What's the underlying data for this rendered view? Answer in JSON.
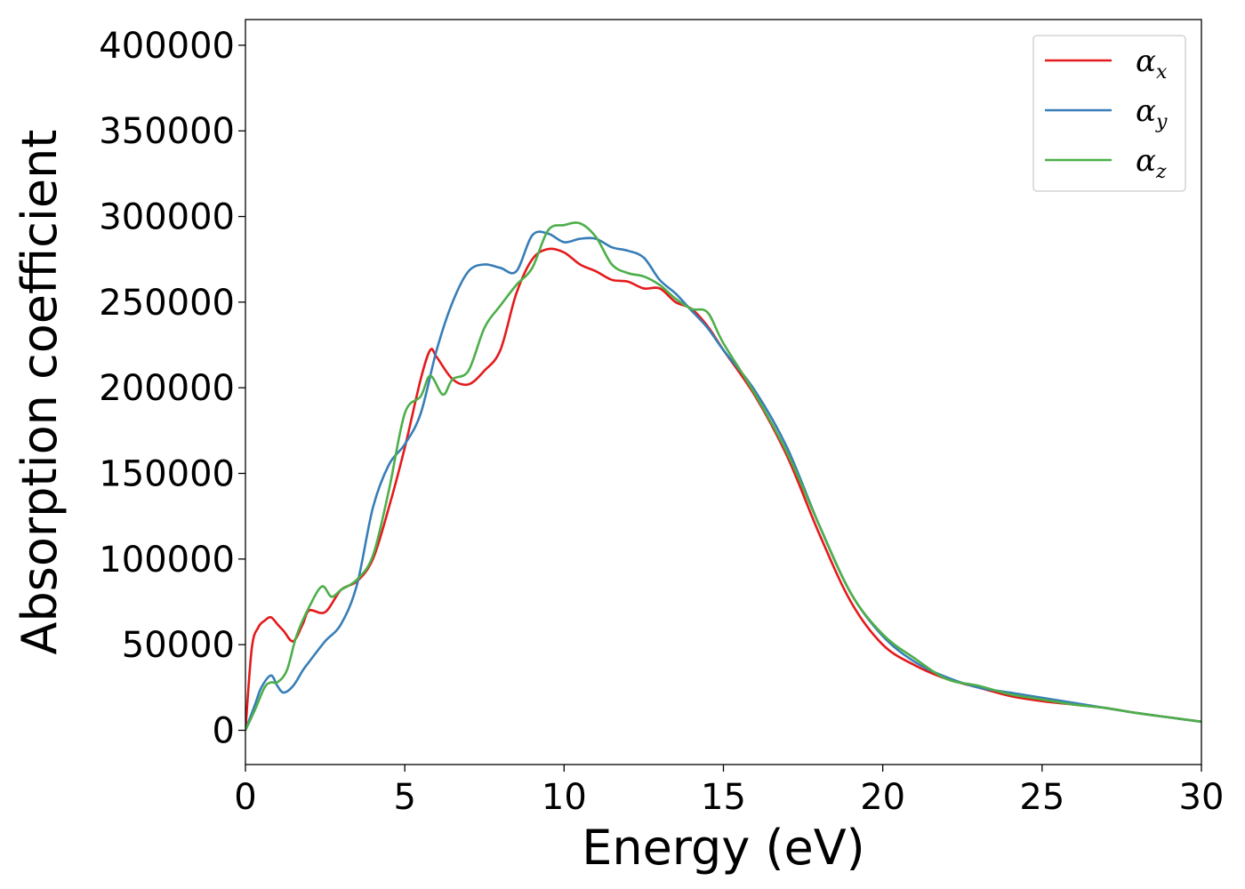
{
  "chart_data": {
    "type": "line",
    "title": "",
    "xlabel": "Energy (eV)",
    "ylabel": "Absorption coefficient",
    "xlim": [
      0,
      30
    ],
    "ylim": [
      -20000,
      415000
    ],
    "grid": false,
    "legend_position": "top-right",
    "x_ticks": [
      0,
      5,
      10,
      15,
      20,
      25,
      30
    ],
    "x_tick_labels": [
      "0",
      "5",
      "10",
      "15",
      "20",
      "25",
      "30"
    ],
    "y_ticks": [
      0,
      50000,
      100000,
      150000,
      200000,
      250000,
      300000,
      350000,
      400000
    ],
    "y_tick_labels": [
      "0",
      "50000",
      "100000",
      "150000",
      "200000",
      "250000",
      "300000",
      "350000",
      "400000"
    ],
    "series": [
      {
        "name": "α_x",
        "legend_symbol": "α",
        "legend_subscript": "x",
        "color": "#e41a1c",
        "x": [
          0,
          0.2,
          0.4,
          0.6,
          0.8,
          1.0,
          1.2,
          1.5,
          1.8,
          2.0,
          2.5,
          3.0,
          3.5,
          4.0,
          4.5,
          5.0,
          5.5,
          5.8,
          6.0,
          6.5,
          7.0,
          7.5,
          8.0,
          8.5,
          9.0,
          9.5,
          10.0,
          10.5,
          11.0,
          11.5,
          12.0,
          12.5,
          13.0,
          13.5,
          14.0,
          14.5,
          15.0,
          16.0,
          17.0,
          18.0,
          19.0,
          20.0,
          21.0,
          22.0,
          23.0,
          24.0,
          25.0,
          26.0,
          27.0,
          28.0,
          29.0,
          30.0
        ],
        "y": [
          0,
          48000,
          60000,
          64000,
          66000,
          62000,
          58000,
          52000,
          62000,
          70000,
          69000,
          82000,
          87000,
          100000,
          130000,
          165000,
          205000,
          222000,
          218000,
          205000,
          202000,
          210000,
          222000,
          255000,
          275000,
          281000,
          279000,
          272000,
          268000,
          263000,
          262000,
          258000,
          258000,
          250000,
          246000,
          236000,
          222000,
          195000,
          160000,
          115000,
          75000,
          50000,
          38000,
          30000,
          25000,
          20000,
          17000,
          15000,
          13000,
          10000,
          7500,
          5000
        ]
      },
      {
        "name": "α_y",
        "legend_symbol": "α",
        "legend_subscript": "y",
        "color": "#377eb8",
        "x": [
          0,
          0.3,
          0.5,
          0.8,
          1.0,
          1.2,
          1.5,
          1.8,
          2.0,
          2.5,
          3.0,
          3.5,
          4.0,
          4.5,
          5.0,
          5.5,
          6.0,
          6.5,
          7.0,
          7.5,
          8.0,
          8.5,
          9.0,
          9.5,
          10.0,
          10.5,
          11.0,
          11.5,
          12.0,
          12.5,
          13.0,
          13.5,
          14.0,
          14.5,
          15.0,
          16.0,
          17.0,
          18.0,
          19.0,
          20.0,
          21.0,
          22.0,
          23.0,
          24.0,
          25.0,
          26.0,
          27.0,
          28.0,
          29.0,
          30.0
        ],
        "y": [
          0,
          15000,
          25000,
          32000,
          26000,
          22000,
          26000,
          35000,
          40000,
          52000,
          62000,
          85000,
          130000,
          155000,
          167000,
          185000,
          222000,
          250000,
          268000,
          272000,
          270000,
          268000,
          289000,
          290000,
          285000,
          287000,
          287000,
          282000,
          280000,
          276000,
          263000,
          255000,
          245000,
          235000,
          222000,
          198000,
          165000,
          120000,
          80000,
          55000,
          40000,
          31000,
          25000,
          22000,
          19000,
          16000,
          13000,
          10000,
          7500,
          5000
        ]
      },
      {
        "name": "α_z",
        "legend_symbol": "α",
        "legend_subscript": "z",
        "color": "#4daf4a",
        "x": [
          0,
          0.3,
          0.6,
          0.8,
          1.0,
          1.3,
          1.6,
          2.0,
          2.4,
          2.7,
          3.0,
          3.5,
          4.0,
          4.5,
          5.0,
          5.5,
          5.8,
          6.2,
          6.5,
          7.0,
          7.5,
          8.0,
          8.5,
          9.0,
          9.5,
          10.0,
          10.5,
          11.0,
          11.5,
          12.0,
          12.5,
          13.0,
          13.5,
          14.0,
          14.5,
          15.0,
          16.0,
          17.0,
          18.0,
          19.0,
          20.0,
          21.0,
          22.0,
          23.0,
          24.0,
          25.0,
          26.0,
          27.0,
          28.0,
          29.0,
          30.0
        ],
        "y": [
          0,
          12000,
          25000,
          28000,
          28000,
          35000,
          55000,
          72000,
          84000,
          78000,
          82000,
          88000,
          102000,
          140000,
          185000,
          195000,
          207000,
          196000,
          205000,
          210000,
          235000,
          248000,
          260000,
          270000,
          292000,
          295000,
          296000,
          288000,
          272000,
          267000,
          265000,
          260000,
          252000,
          246000,
          244000,
          226000,
          196000,
          162000,
          120000,
          80000,
          56000,
          42000,
          30000,
          26000,
          21000,
          18000,
          15000,
          13000,
          10000,
          7500,
          5000
        ]
      }
    ]
  }
}
